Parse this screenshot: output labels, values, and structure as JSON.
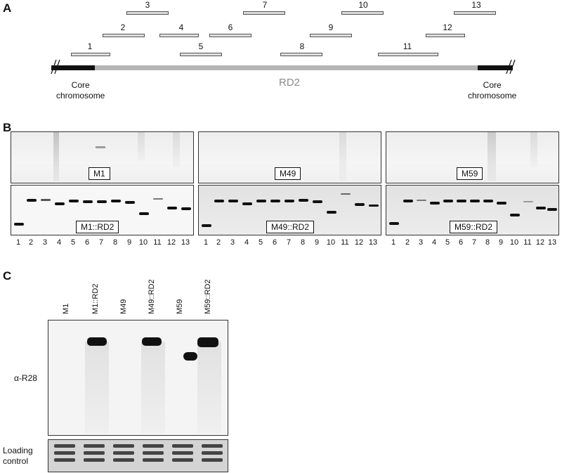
{
  "panels": {
    "a": "A",
    "b": "B",
    "c": "C"
  },
  "panel_a": {
    "segments": [
      "1",
      "2",
      "3",
      "4",
      "5",
      "6",
      "7",
      "8",
      "9",
      "10",
      "11",
      "12",
      "13"
    ],
    "left_label": "Core chromosome",
    "left_label_l1": "Core",
    "left_label_l2": "chromosome",
    "right_label_l1": "Core",
    "right_label_l2": "chromosome",
    "region_label": "RD2"
  },
  "panel_b": {
    "top_labels": [
      "M1",
      "M49",
      "M59"
    ],
    "bottom_labels": [
      "M1::RD2",
      "M49::RD2",
      "M59::RD2"
    ],
    "lane_numbers": [
      "1",
      "2",
      "3",
      "4",
      "5",
      "6",
      "7",
      "8",
      "9",
      "10",
      "11",
      "12",
      "13"
    ]
  },
  "panel_c": {
    "lane_labels": [
      "M1",
      "M1::RD2",
      "M49",
      "M49::RD2",
      "M59",
      "M59::RD2"
    ],
    "antibody_label": "α-R28",
    "loading_l1": "Loading",
    "loading_l2": "control"
  }
}
